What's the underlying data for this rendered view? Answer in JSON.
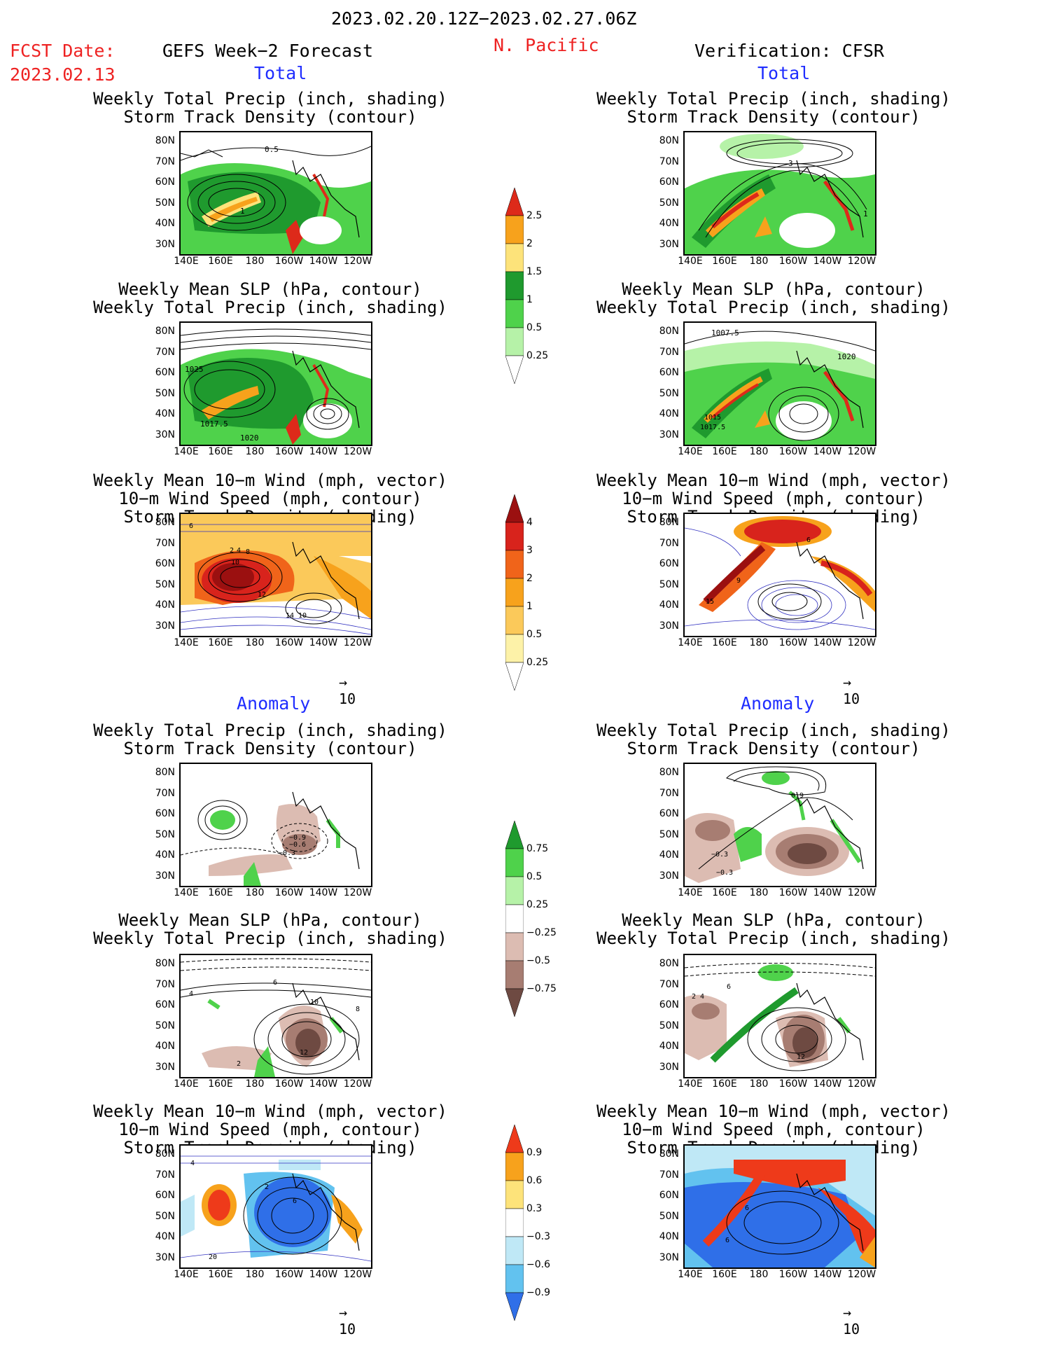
{
  "header": {
    "date_range": "2023.02.20.12Z−2023.02.27.06Z",
    "fcst_label": "FCST Date:",
    "fcst_date": "2023.02.13",
    "left_title": "GEFS Week−2 Forecast",
    "region": "N. Pacific",
    "right_title": "Verification: CFSR"
  },
  "sections": {
    "total": "Total",
    "anomaly": "Anomaly"
  },
  "panel_titles": {
    "precip_track": [
      "Weekly Total Precip (inch, shading)",
      "Storm Track Density (contour)"
    ],
    "slp_precip": [
      "Weekly Mean SLP (hPa, contour)",
      "Weekly Total Precip (inch, shading)"
    ],
    "wind_track": [
      "Weekly Mean 10−m Wind (mph, vector)",
      "10−m Wind Speed (mph, contour)",
      "Storm Track Density (shading)"
    ]
  },
  "axes": {
    "lat_ticks": [
      "80N",
      "70N",
      "60N",
      "50N",
      "40N",
      "30N"
    ],
    "lon_ticks": [
      "140E",
      "160E",
      "180",
      "160W",
      "140W",
      "120W"
    ]
  },
  "vector_ref": "10",
  "colorbars": {
    "precip_total": {
      "labels": [
        "2.5",
        "2",
        "1.5",
        "1",
        "0.5",
        "0.25"
      ],
      "colors": [
        "#dd2a1a",
        "#f7a21c",
        "#fde37a",
        "#1f9a2e",
        "#4fd24b",
        "#b6f2a8"
      ]
    },
    "track_total": {
      "labels": [
        "4",
        "3",
        "2",
        "1",
        "0.5",
        "0.25"
      ],
      "colors": [
        "#9b1010",
        "#d8231c",
        "#f0641a",
        "#f7a21c",
        "#fbc95a",
        "#fdf2a8"
      ]
    },
    "precip_anom": {
      "labels": [
        "0.75",
        "0.5",
        "0.25",
        "−0.25",
        "−0.5",
        "−0.75"
      ],
      "colors": [
        "#1f9a2e",
        "#4fd24b",
        "#b6f2a8",
        "#ffffff",
        "#dcbcb2",
        "#a77d72",
        "#6e4a42"
      ]
    },
    "track_anom": {
      "labels": [
        "0.9",
        "0.6",
        "0.3",
        "−0.3",
        "−0.6",
        "−0.9"
      ],
      "colors": [
        "#ee3a1a",
        "#f7a21c",
        "#fde37a",
        "#ffffff",
        "#bfe8f6",
        "#62c2ef",
        "#2f6fe8"
      ]
    }
  },
  "panel_labels": {
    "l1": [
      "0.5",
      "1"
    ],
    "r1": [
      "3",
      "1"
    ],
    "l2": [
      "1025",
      "1017.5",
      "1020"
    ],
    "r2": [
      "1007.5",
      "1020",
      "1015",
      "1017.5"
    ],
    "l3": [
      "6",
      "2",
      "4",
      "8",
      "10",
      "12",
      "14",
      "10"
    ],
    "r3": [
      "6",
      "9",
      "15"
    ],
    "l4": [
      "−0.9",
      "−0.6",
      "−0.3"
    ],
    "r4": [
      "0.9",
      "−0.3",
      "−0.3"
    ],
    "l5": [
      "6",
      "10",
      "8",
      "12",
      "2",
      "4"
    ],
    "r5": [
      "6",
      "2",
      "4",
      "12"
    ],
    "l6": [
      "4",
      "6",
      "2",
      "20"
    ],
    "r6": [
      "6",
      "6"
    ]
  }
}
